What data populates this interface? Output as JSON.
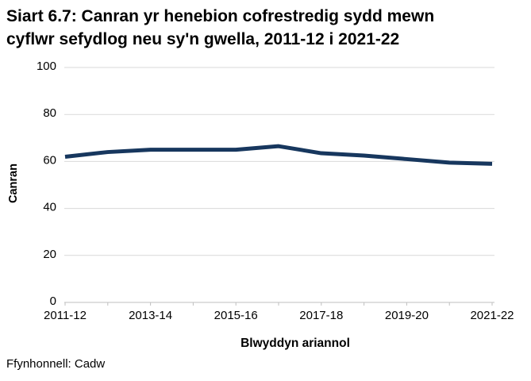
{
  "title_line1": "Siart 6.7: Canran yr henebion cofrestredig sydd mewn",
  "title_line2": "cyflwr sefydlog neu sy'n gwella, 2011-12 i 2021-22",
  "source": "Ffynhonnell: Cadw",
  "colors": {
    "line": "#17375e",
    "gridline": "#d9d9d9",
    "axis": "#bfbfbf",
    "text": "#000000"
  },
  "chart_data": {
    "type": "line",
    "title": "Siart 6.7: Canran yr henebion cofrestredig sydd mewn cyflwr sefydlog neu sy'n gwella, 2011-12 i 2021-22",
    "categories": [
      "2011-12",
      "2012-13",
      "2013-14",
      "2014-15",
      "2015-16",
      "2016-17",
      "2017-18",
      "2018-19",
      "2019-20",
      "2020-21",
      "2021-22"
    ],
    "values": [
      62,
      64,
      65,
      65,
      65,
      66.5,
      63.5,
      62.5,
      61,
      59.5,
      59
    ],
    "xlabel": "Blwyddyn ariannol",
    "ylabel": "Canran",
    "ylim": [
      0,
      100
    ],
    "yticks": [
      0,
      20,
      40,
      60,
      80,
      100
    ],
    "xticks_shown": [
      "2011-12",
      "2013-14",
      "2015-16",
      "2017-18",
      "2019-20",
      "2021-22"
    ],
    "grid": true,
    "legend": "none"
  }
}
